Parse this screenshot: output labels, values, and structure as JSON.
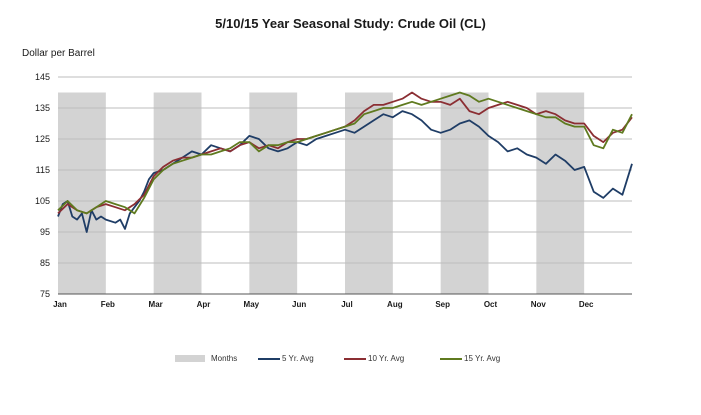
{
  "chart_data": {
    "type": "line",
    "title": "5/10/15 Year Seasonal Study: Crude Oil (CL)",
    "ylabel": "Dollar per Barrel",
    "xlabel": "",
    "ylim": [
      75,
      145
    ],
    "yticks": [
      75,
      85,
      95,
      105,
      115,
      125,
      135,
      145
    ],
    "xlim": [
      0,
      12
    ],
    "x_tick_labels": [
      "Jan",
      "Feb",
      "Mar",
      "Apr",
      "May",
      "Jun",
      "Jul",
      "Aug",
      "Sep",
      "Oct",
      "Nov",
      "Dec"
    ],
    "shaded_bands_months": [
      "Jan",
      "Mar",
      "May",
      "Jul",
      "Sep",
      "Nov"
    ],
    "grid": "horizontal",
    "legend_position": "bottom",
    "legend": [
      {
        "label": "Months",
        "kind": "box",
        "color": "#d3d3d3"
      },
      {
        "label": "5 Yr. Avg",
        "kind": "line",
        "color": "#1f3d66"
      },
      {
        "label": "10 Yr. Avg",
        "kind": "line",
        "color": "#8b2e33"
      },
      {
        "label": "15 Yr. Avg",
        "kind": "line",
        "color": "#5f7a1f"
      }
    ],
    "series": [
      {
        "name": "5 Yr. Avg",
        "color": "#1f3d66",
        "x": [
          0,
          0.1,
          0.2,
          0.3,
          0.4,
          0.5,
          0.6,
          0.7,
          0.8,
          0.9,
          1.0,
          1.2,
          1.3,
          1.4,
          1.5,
          1.6,
          1.7,
          1.8,
          1.9,
          2.0,
          2.2,
          2.4,
          2.6,
          2.8,
          3.0,
          3.2,
          3.4,
          3.6,
          3.8,
          4.0,
          4.2,
          4.4,
          4.6,
          4.8,
          5.0,
          5.2,
          5.4,
          5.6,
          5.8,
          6.0,
          6.2,
          6.4,
          6.6,
          6.8,
          7.0,
          7.2,
          7.4,
          7.6,
          7.8,
          8.0,
          8.2,
          8.4,
          8.6,
          8.8,
          9.0,
          9.2,
          9.4,
          9.6,
          9.8,
          10.0,
          10.2,
          10.4,
          10.6,
          10.8,
          11.0,
          11.2,
          11.4,
          11.6,
          11.8,
          11.9,
          12.0
        ],
        "values": [
          100,
          104,
          105,
          100,
          99,
          101,
          95,
          102,
          99,
          100,
          99,
          98,
          99,
          96,
          101,
          103,
          105,
          108,
          112,
          114,
          115,
          117,
          119,
          121,
          120,
          123,
          122,
          121,
          123,
          126,
          125,
          122,
          121,
          122,
          124,
          123,
          125,
          126,
          127,
          128,
          127,
          129,
          131,
          133,
          132,
          134,
          133,
          131,
          128,
          127,
          128,
          130,
          131,
          129,
          126,
          124,
          121,
          122,
          120,
          119,
          117,
          120,
          118,
          115,
          116,
          108,
          106,
          109,
          107,
          112,
          117
        ]
      },
      {
        "name": "10 Yr. Avg",
        "color": "#8b2e33",
        "x": [
          0,
          0.2,
          0.4,
          0.6,
          0.8,
          1.0,
          1.2,
          1.4,
          1.6,
          1.8,
          2.0,
          2.2,
          2.4,
          2.6,
          2.8,
          3.0,
          3.2,
          3.4,
          3.6,
          3.8,
          4.0,
          4.2,
          4.4,
          4.6,
          4.8,
          5.0,
          5.2,
          5.4,
          5.6,
          5.8,
          6.0,
          6.2,
          6.4,
          6.6,
          6.8,
          7.0,
          7.2,
          7.4,
          7.6,
          7.8,
          8.0,
          8.2,
          8.4,
          8.6,
          8.8,
          9.0,
          9.2,
          9.4,
          9.6,
          9.8,
          10.0,
          10.2,
          10.4,
          10.6,
          10.8,
          11.0,
          11.2,
          11.4,
          11.6,
          11.8,
          12.0
        ],
        "values": [
          101,
          104,
          102,
          101,
          103,
          104,
          103,
          102,
          104,
          107,
          113,
          116,
          118,
          119,
          119,
          120,
          121,
          122,
          121,
          123,
          124,
          122,
          123,
          122,
          124,
          125,
          125,
          126,
          127,
          128,
          129,
          131,
          134,
          136,
          136,
          137,
          138,
          140,
          138,
          137,
          137,
          136,
          138,
          134,
          133,
          135,
          136,
          137,
          136,
          135,
          133,
          134,
          133,
          131,
          130,
          130,
          126,
          124,
          127,
          128,
          132
        ]
      },
      {
        "name": "15 Yr. Avg",
        "color": "#5f7a1f",
        "x": [
          0,
          0.2,
          0.4,
          0.6,
          0.8,
          1.0,
          1.2,
          1.4,
          1.6,
          1.8,
          2.0,
          2.2,
          2.4,
          2.6,
          2.8,
          3.0,
          3.2,
          3.4,
          3.6,
          3.8,
          4.0,
          4.2,
          4.4,
          4.6,
          4.8,
          5.0,
          5.2,
          5.4,
          5.6,
          5.8,
          6.0,
          6.2,
          6.4,
          6.6,
          6.8,
          7.0,
          7.2,
          7.4,
          7.6,
          7.8,
          8.0,
          8.2,
          8.4,
          8.6,
          8.8,
          9.0,
          9.2,
          9.4,
          9.6,
          9.8,
          10.0,
          10.2,
          10.4,
          10.6,
          10.8,
          11.0,
          11.2,
          11.4,
          11.6,
          11.8,
          12.0
        ],
        "values": [
          102,
          105,
          102,
          101,
          103,
          105,
          104,
          103,
          101,
          106,
          112,
          115,
          117,
          118,
          119,
          120,
          120,
          121,
          122,
          124,
          124,
          121,
          123,
          123,
          124,
          124,
          125,
          126,
          127,
          128,
          129,
          130,
          133,
          134,
          135,
          135,
          136,
          137,
          136,
          137,
          138,
          139,
          140,
          139,
          137,
          138,
          137,
          136,
          135,
          134,
          133,
          132,
          132,
          130,
          129,
          129,
          123,
          122,
          128,
          127,
          133
        ]
      }
    ]
  }
}
